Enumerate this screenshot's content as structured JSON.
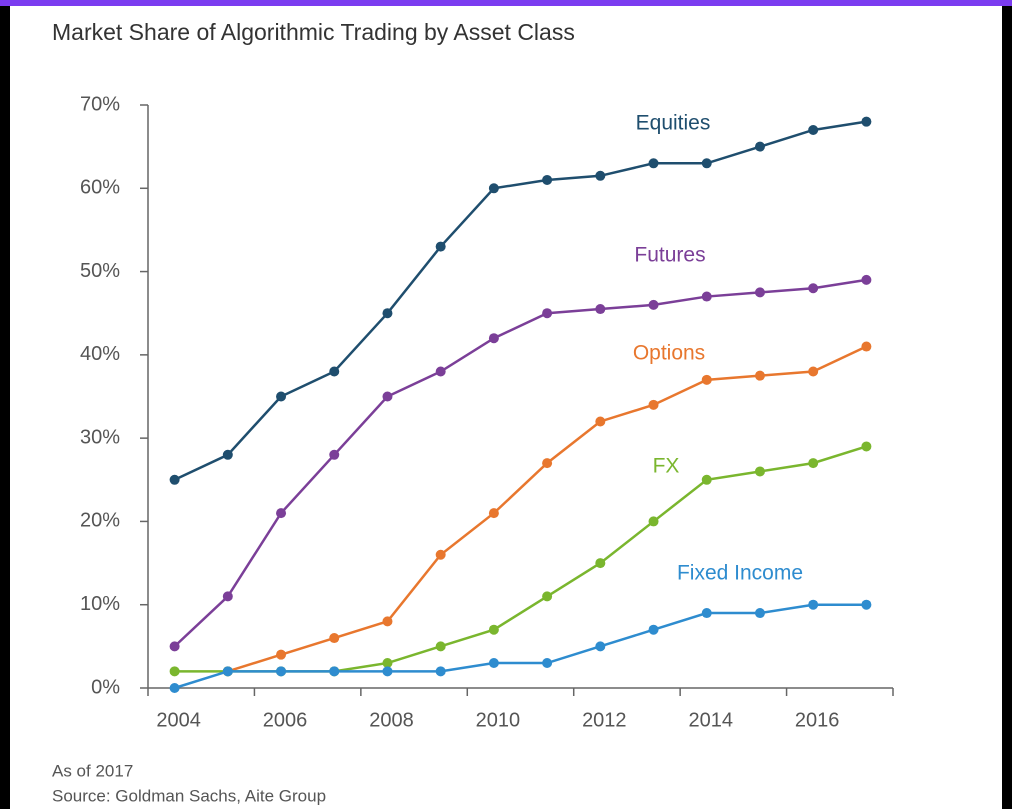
{
  "chart_data": {
    "type": "line",
    "title": "Market Share of Algorithmic Trading by Asset Class",
    "categories": [
      "2004",
      null,
      "2006",
      null,
      "2008",
      null,
      "2010",
      null,
      "2012",
      null,
      "2014",
      null,
      "2016",
      null
    ],
    "series": [
      {
        "name": "Equities",
        "color": "#1f4e6e",
        "values": [
          25,
          28,
          35,
          38,
          45,
          53,
          60,
          61,
          61.5,
          63,
          63,
          65,
          67,
          68
        ]
      },
      {
        "name": "Futures",
        "color": "#7b3f98",
        "values": [
          5,
          11,
          21,
          28,
          35,
          38,
          42,
          45,
          45.5,
          46,
          47,
          47.5,
          48,
          49
        ]
      },
      {
        "name": "Options",
        "color": "#e8772e",
        "values": [
          null,
          2,
          4,
          6,
          8,
          16,
          21,
          27,
          32,
          34,
          37,
          37.5,
          38,
          41
        ]
      },
      {
        "name": "FX",
        "color": "#7ab62e",
        "values": [
          2,
          2,
          2,
          2,
          3,
          5,
          7,
          11,
          15,
          20,
          25,
          26,
          27,
          29
        ]
      },
      {
        "name": "Fixed Income",
        "color": "#2e8ccf",
        "values": [
          0,
          2,
          2,
          2,
          2,
          2,
          3,
          3,
          5,
          7,
          9,
          9,
          10,
          10
        ]
      }
    ],
    "ylim": [
      0,
      70
    ],
    "yticks": [
      {
        "value": 0,
        "label": "0%"
      },
      {
        "value": 10,
        "label": "10%"
      },
      {
        "value": 20,
        "label": "20%"
      },
      {
        "value": 30,
        "label": "30%"
      },
      {
        "value": 40,
        "label": "40%"
      },
      {
        "value": 50,
        "label": "50%"
      },
      {
        "value": 60,
        "label": "60%"
      },
      {
        "value": 70,
        "label": "70%"
      }
    ],
    "notes": [
      "As of 2017",
      "Source: Goldman Sachs, Aite Group"
    ]
  }
}
